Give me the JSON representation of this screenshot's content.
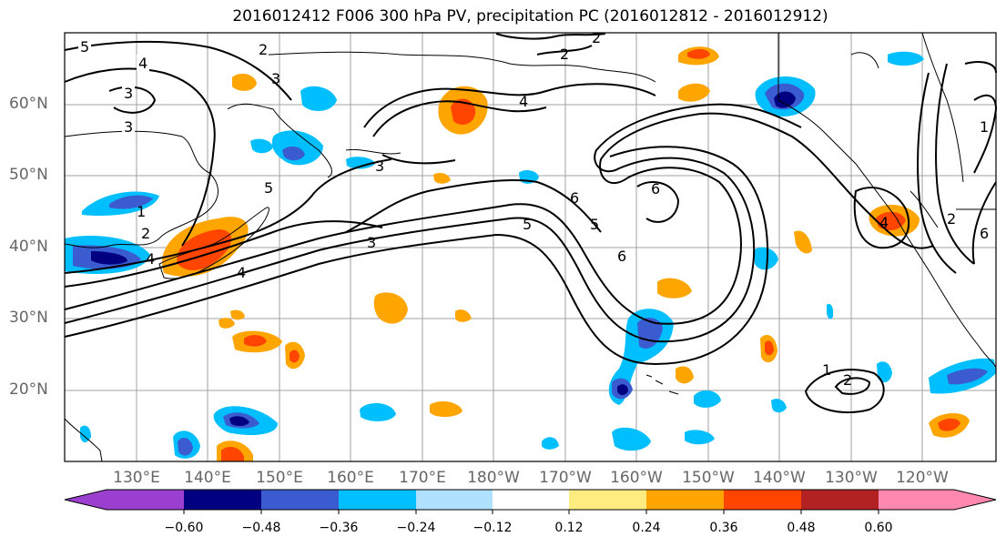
{
  "title": "2016012412 F006 300 hPa PV, precipitation PC (2016012812 - 2016012912)",
  "map": {
    "lat_labels": [
      "60°N",
      "50°N",
      "40°N",
      "30°N",
      "20°N"
    ],
    "lon_labels": [
      "130°E",
      "140°E",
      "150°E",
      "160°E",
      "170°E",
      "180°W",
      "170°W",
      "160°W",
      "150°W",
      "140°W",
      "130°W",
      "120°W"
    ],
    "contour_labels": [
      "5",
      "4",
      "3",
      "3",
      "2",
      "3",
      "5",
      "2",
      "4",
      "3",
      "4",
      "2",
      "5",
      "6",
      "6",
      "5",
      "6",
      "3",
      "4",
      "1",
      "2",
      "6",
      "4",
      "1",
      "2",
      "2",
      "1"
    ]
  },
  "colorbar": {
    "colors": [
      "#9a3fd0",
      "#000080",
      "#3b5bd0",
      "#00bfff",
      "#b0e2ff",
      "#ffffff",
      "#ffec80",
      "#ffa500",
      "#ff4500",
      "#b22222",
      "#ff88b0"
    ],
    "tick_labels": [
      "−0.60",
      "−0.48",
      "−0.36",
      "−0.24",
      "−0.12",
      "0.12",
      "0.24",
      "0.36",
      "0.48",
      "0.60"
    ]
  }
}
